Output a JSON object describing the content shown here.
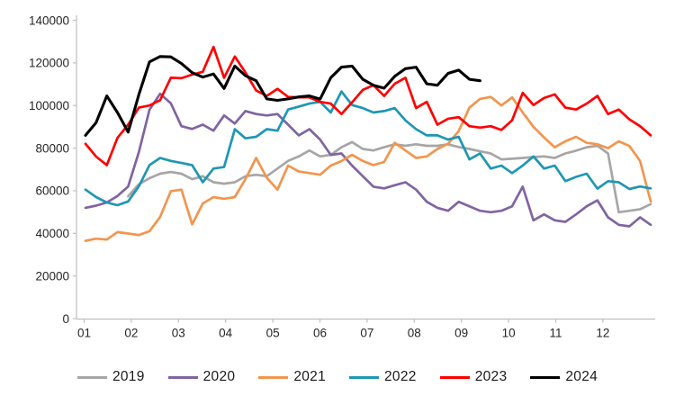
{
  "chart_data": {
    "type": "line",
    "title": "",
    "grid": false,
    "legend_position": "bottom",
    "x_unit": "week-of-year",
    "x_axis": {
      "label": "",
      "labels": [
        "01",
        "02",
        "03",
        "04",
        "05",
        "06",
        "07",
        "08",
        "09",
        "10",
        "11",
        "12"
      ]
    },
    "y_axis": {
      "label": "",
      "ylim": [
        0,
        140000
      ],
      "ticks": [
        0,
        20000,
        40000,
        60000,
        80000,
        100000,
        120000,
        140000
      ]
    },
    "axis_color": "#bfbfbf",
    "tick_label_color": "#262626",
    "series": [
      {
        "name": "2019",
        "color": "#a6a6a6",
        "values": [
          null,
          null,
          null,
          null,
          57400,
          63000,
          65900,
          68000,
          68800,
          68000,
          65400,
          66800,
          64000,
          63300,
          64000,
          66800,
          67500,
          66800,
          70400,
          74000,
          76100,
          78900,
          76100,
          76800,
          80400,
          82800,
          79600,
          78900,
          80400,
          81800,
          81100,
          81800,
          81100,
          81100,
          81800,
          80500,
          79600,
          78500,
          77500,
          74700,
          75000,
          75400,
          75800,
          76100,
          75400,
          77500,
          78800,
          80400,
          81100,
          77500,
          49900,
          50600,
          51300,
          53700
        ]
      },
      {
        "name": "2020",
        "color": "#8064a2",
        "values": [
          52000,
          53000,
          54500,
          57500,
          62000,
          78000,
          98000,
          105500,
          101000,
          90300,
          89000,
          91000,
          88200,
          95300,
          91500,
          97400,
          96000,
          95300,
          96000,
          91000,
          86000,
          88900,
          84000,
          76800,
          77500,
          71800,
          66800,
          61900,
          61100,
          62600,
          64000,
          60500,
          54800,
          52000,
          50600,
          54800,
          52700,
          50600,
          49900,
          50600,
          52700,
          61900,
          46100,
          48900,
          46100,
          45400,
          48900,
          52700,
          55500,
          47500,
          44000,
          43300,
          47500,
          44000
        ]
      },
      {
        "name": "2021",
        "color": "#f2954e",
        "values": [
          36500,
          37500,
          37100,
          40600,
          39900,
          39200,
          41000,
          47700,
          59800,
          60500,
          44200,
          54000,
          57000,
          56200,
          57000,
          65400,
          75400,
          66100,
          60500,
          71800,
          69000,
          68300,
          67500,
          71800,
          73900,
          76800,
          74000,
          72000,
          73500,
          82500,
          78900,
          75400,
          76100,
          79600,
          82000,
          88000,
          99000,
          103100,
          104000,
          100000,
          103800,
          96700,
          90000,
          85000,
          80400,
          83200,
          85300,
          82500,
          81800,
          80000,
          83200,
          81000,
          74000,
          55000
        ]
      },
      {
        "name": "2022",
        "color": "#1e97b5",
        "values": [
          60500,
          57000,
          54500,
          53200,
          55000,
          62000,
          72000,
          75400,
          74000,
          73000,
          72000,
          64000,
          70400,
          71100,
          88900,
          84600,
          85300,
          88900,
          88200,
          98100,
          99500,
          100900,
          101700,
          96700,
          106600,
          100200,
          98800,
          96700,
          97400,
          98800,
          93000,
          88900,
          86000,
          86000,
          84000,
          85300,
          74700,
          77500,
          70400,
          71800,
          68300,
          71800,
          76100,
          70400,
          71800,
          64500,
          66500,
          68000,
          61000,
          64500,
          64000,
          60800,
          62000,
          61100
        ]
      },
      {
        "name": "2023",
        "color": "#ff0000",
        "values": [
          82000,
          76000,
          72000,
          84800,
          91000,
          99000,
          100000,
          102500,
          113000,
          112800,
          114500,
          115800,
          127500,
          113000,
          123000,
          115500,
          107000,
          104500,
          107800,
          104000,
          103800,
          103800,
          101700,
          100900,
          96000,
          101500,
          107300,
          109500,
          104500,
          110200,
          113000,
          98800,
          101700,
          91000,
          93800,
          94500,
          90300,
          89600,
          90300,
          88500,
          93100,
          105900,
          100200,
          103500,
          105200,
          99000,
          98100,
          100900,
          104500,
          96000,
          98100,
          93500,
          90300,
          86000
        ]
      },
      {
        "name": "2024",
        "color": "#000000",
        "values": [
          86000,
          92000,
          104500,
          96700,
          87500,
          105000,
          120500,
          123000,
          122800,
          119700,
          115400,
          113300,
          114800,
          108000,
          118500,
          114000,
          111600,
          103100,
          102400,
          103100,
          104000,
          104500,
          103000,
          113000,
          118000,
          118500,
          112300,
          109500,
          108100,
          113700,
          117300,
          118000,
          110200,
          109500,
          115100,
          116600,
          112300,
          111600,
          null,
          null,
          null,
          null,
          null,
          null,
          null,
          null,
          null,
          null,
          null,
          null,
          null,
          null,
          null,
          null
        ]
      }
    ]
  }
}
